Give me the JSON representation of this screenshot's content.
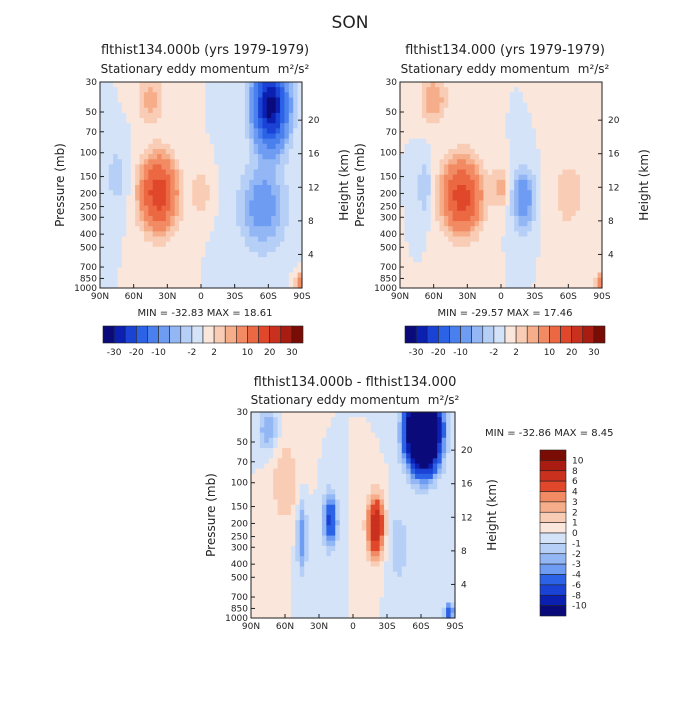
{
  "main_title": "SON",
  "colors": {
    "background": "#ffffff",
    "diverging_22": [
      "#0a0a7a",
      "#0b1fb0",
      "#1a43d6",
      "#2b62e6",
      "#4a80ee",
      "#6e9cf2",
      "#93b6f4",
      "#b6cff6",
      "#d4e3f8",
      "#e8f0fb",
      "#fbe6dc",
      "#f9cdb5",
      "#f6ad8a",
      "#f28a63",
      "#ec6843",
      "#e0472b",
      "#c9301d",
      "#a81c12",
      "#7a0c06"
    ],
    "diverging_ref": [
      "#0a0a7a",
      "#0b1fb0",
      "#1a43d6",
      "#2b62e6",
      "#4a80ee",
      "#6e9cf2",
      "#93b6f4",
      "#b6cff6",
      "#d4e3f8",
      "#fbe6dc",
      "#f9cdb5",
      "#f6ad8a",
      "#f28a63",
      "#ec6843",
      "#e0472b",
      "#c9301d",
      "#a81c12",
      "#7a0c06"
    ]
  },
  "chart_data": [
    {
      "type": "heatmap",
      "title": "flthist134.000b (yrs 1979-1979)",
      "subtitle": "Stationary eddy momentum",
      "units": "m²/s²",
      "xlabel": "",
      "ylabel": "Pressure (mb)",
      "ylabel_right": "Height (km)",
      "x_ticks": [
        "90N",
        "60N",
        "30N",
        "0",
        "30S",
        "60S",
        "90S"
      ],
      "x_range": [
        90,
        -90
      ],
      "y_ticks": [
        30,
        50,
        70,
        100,
        150,
        200,
        250,
        300,
        400,
        500,
        700,
        850,
        1000
      ],
      "y_range": [
        1000,
        30
      ],
      "height_ticks": [
        4,
        8,
        12,
        16,
        20
      ],
      "min": -32.83,
      "max": 18.61,
      "stat_text": "MIN = -32.83   MAX =  18.61",
      "colorbar": {
        "labels": [
          "-30",
          "-20",
          "-10",
          "-2",
          "2",
          "10",
          "20",
          "30"
        ],
        "orientation": "horizontal"
      },
      "features": [
        {
          "lat": 38,
          "p": 200,
          "amp": 18.6,
          "wlat": 11,
          "wp": 0.42
        },
        {
          "lat": 45,
          "p": 40,
          "amp": 5,
          "wlat": 8,
          "wp": 0.3
        },
        {
          "lat": 0,
          "p": 200,
          "amp": 4,
          "wlat": 6,
          "wp": 0.25
        },
        {
          "lat": -62,
          "p": 45,
          "amp": -32.8,
          "wlat": 10,
          "wp": 0.45
        },
        {
          "lat": -55,
          "p": 250,
          "amp": -8,
          "wlat": 14,
          "wp": 0.5
        },
        {
          "lat": 75,
          "p": 150,
          "amp": -3,
          "wlat": 8,
          "wp": 0.4
        },
        {
          "lat": -88,
          "p": 900,
          "amp": 8,
          "wlat": 3,
          "wp": 0.1
        }
      ]
    },
    {
      "type": "heatmap",
      "title": "flthist134.000 (yrs 1979-1979)",
      "subtitle": "Stationary eddy momentum",
      "units": "m²/s²",
      "xlabel": "",
      "ylabel": "Pressure (mb)",
      "ylabel_right": "Height (km)",
      "x_ticks": [
        "90N",
        "60N",
        "30N",
        "0",
        "30S",
        "60S",
        "90S"
      ],
      "x_range": [
        90,
        -90
      ],
      "y_ticks": [
        30,
        50,
        70,
        100,
        150,
        200,
        250,
        300,
        400,
        500,
        700,
        850,
        1000
      ],
      "y_range": [
        1000,
        30
      ],
      "height_ticks": [
        4,
        8,
        12,
        16,
        20
      ],
      "min": -29.57,
      "max": 17.46,
      "stat_text": "MIN = -29.57   MAX =  17.46",
      "colorbar": {
        "labels": [
          "-30",
          "-20",
          "-10",
          "-2",
          "2",
          "10",
          "20",
          "30"
        ],
        "orientation": "horizontal"
      },
      "features": [
        {
          "lat": 35,
          "p": 210,
          "amp": 17.5,
          "wlat": 12,
          "wp": 0.42
        },
        {
          "lat": 60,
          "p": 40,
          "amp": 6,
          "wlat": 8,
          "wp": 0.3
        },
        {
          "lat": 0,
          "p": 180,
          "amp": 5,
          "wlat": 5,
          "wp": 0.25
        },
        {
          "lat": -20,
          "p": 220,
          "amp": -9,
          "wlat": 7,
          "wp": 0.35
        },
        {
          "lat": 68,
          "p": 180,
          "amp": -4,
          "wlat": 5,
          "wp": 0.35
        },
        {
          "lat": -60,
          "p": 200,
          "amp": 3,
          "wlat": 12,
          "wp": 0.5
        },
        {
          "lat": -88,
          "p": 900,
          "amp": 8,
          "wlat": 3,
          "wp": 0.1
        }
      ]
    },
    {
      "type": "heatmap",
      "title": "flthist134.000b - flthist134.000",
      "subtitle": "Stationary eddy momentum",
      "units": "m²/s²",
      "xlabel": "",
      "ylabel": "Pressure (mb)",
      "ylabel_right": "Height (km)",
      "x_ticks": [
        "90N",
        "60N",
        "30N",
        "0",
        "30S",
        "60S",
        "90S"
      ],
      "x_range": [
        90,
        -90
      ],
      "y_ticks": [
        30,
        50,
        70,
        100,
        150,
        200,
        250,
        300,
        400,
        500,
        700,
        850,
        1000
      ],
      "y_range": [
        1000,
        30
      ],
      "height_ticks": [
        4,
        8,
        12,
        16,
        20
      ],
      "min": -32.86,
      "max": 8.45,
      "stat_text": "MIN = -32.86   MAX =    8.45",
      "colorbar": {
        "labels": [
          "10",
          "8",
          "6",
          "4",
          "3",
          "2",
          "1",
          "0",
          "-1",
          "-2",
          "-3",
          "-4",
          "-6",
          "-8",
          "-10"
        ],
        "orientation": "vertical"
      },
      "features": [
        {
          "lat": -62,
          "p": 42,
          "amp": -32.9,
          "wlat": 9,
          "wp": 0.4
        },
        {
          "lat": 20,
          "p": 190,
          "amp": -7,
          "wlat": 4,
          "wp": 0.3
        },
        {
          "lat": -20,
          "p": 210,
          "amp": 8.4,
          "wlat": 5,
          "wp": 0.35
        },
        {
          "lat": 45,
          "p": 250,
          "amp": -4,
          "wlat": 3,
          "wp": 0.4
        },
        {
          "lat": 60,
          "p": 100,
          "amp": 2,
          "wlat": 8,
          "wp": 0.5
        },
        {
          "lat": 75,
          "p": 40,
          "amp": -3,
          "wlat": 6,
          "wp": 0.25
        },
        {
          "lat": -40,
          "p": 300,
          "amp": -2,
          "wlat": 6,
          "wp": 0.4
        },
        {
          "lat": -85,
          "p": 900,
          "amp": -6,
          "wlat": 3,
          "wp": 0.1
        }
      ]
    }
  ]
}
